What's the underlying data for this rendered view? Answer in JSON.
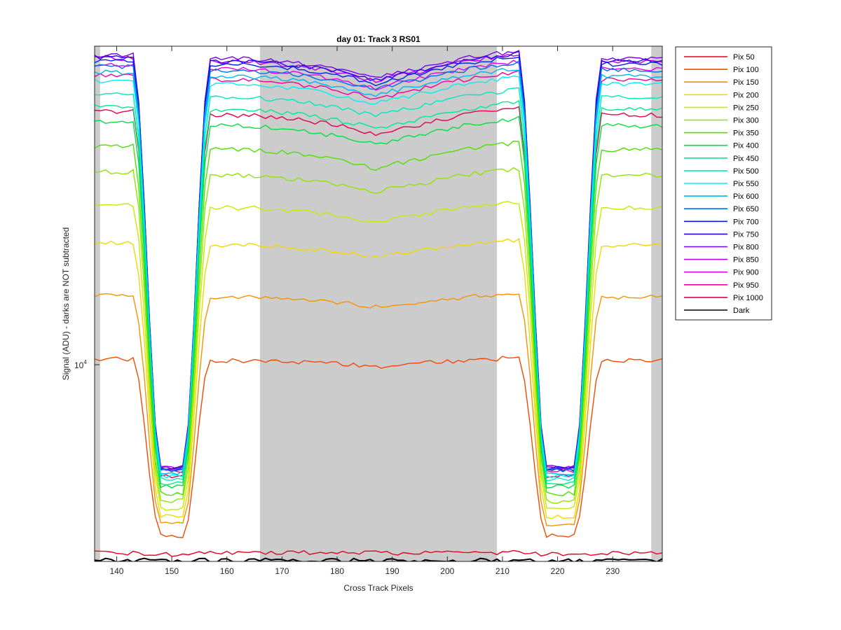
{
  "chart_data": {
    "type": "line",
    "title": "day 01: Track 3  RS01",
    "xlabel": "Cross Track Pixels",
    "ylabel": "Signal (ADU) - darks are NOT subtracted",
    "y_scale": "log",
    "xlim": [
      136,
      239
    ],
    "ylim": [
      4300,
      17000
    ],
    "x_ticks": [
      "140",
      "150",
      "160",
      "170",
      "180",
      "190",
      "200",
      "210",
      "220",
      "230"
    ],
    "y_tick_label": "10",
    "y_tick_exponent": "4",
    "shaded_bands": [
      [
        136,
        137
      ],
      [
        166,
        209
      ],
      [
        237,
        239
      ]
    ],
    "legend_position": "outside-right",
    "grid": false,
    "series": [
      {
        "name": "Pix 50",
        "color": "#e6001e",
        "plateau": 4400,
        "dip": 4380
      },
      {
        "name": "Pix 100",
        "color": "#f04a00",
        "plateau": 7350,
        "dip": 4600
      },
      {
        "name": "Pix 150",
        "color": "#f39400",
        "plateau": 8700,
        "dip": 4750
      },
      {
        "name": "Pix 200",
        "color": "#f0d800",
        "plateau": 10000,
        "dip": 4850
      },
      {
        "name": "Pix 250",
        "color": "#c8ea00",
        "plateau": 11050,
        "dip": 4950
      },
      {
        "name": "Pix 300",
        "color": "#8ee600",
        "plateau": 12050,
        "dip": 5050
      },
      {
        "name": "Pix 350",
        "color": "#4ee000",
        "plateau": 12900,
        "dip": 5150
      },
      {
        "name": "Pix 400",
        "color": "#00e040",
        "plateau": 13750,
        "dip": 5250
      },
      {
        "name": "Pix 450",
        "color": "#00e890",
        "plateau": 14350,
        "dip": 5300
      },
      {
        "name": "Pix 500",
        "color": "#00e8c0",
        "plateau": 14850,
        "dip": 5350
      },
      {
        "name": "Pix 550",
        "color": "#00f0f0",
        "plateau": 15350,
        "dip": 5400
      },
      {
        "name": "Pix 600",
        "color": "#00b4f0",
        "plateau": 15700,
        "dip": 5450
      },
      {
        "name": "Pix 650",
        "color": "#0070e6",
        "plateau": 15950,
        "dip": 5480
      },
      {
        "name": "Pix 700",
        "color": "#0020e6",
        "plateau": 16200,
        "dip": 5500
      },
      {
        "name": "Pix 750",
        "color": "#3000e6",
        "plateau": 16350,
        "dip": 5520
      },
      {
        "name": "Pix 800",
        "color": "#7a00e6",
        "plateau": 16450,
        "dip": 5530
      },
      {
        "name": "Pix 850",
        "color": "#b400ee",
        "plateau": 16300,
        "dip": 5530
      },
      {
        "name": "Pix 900",
        "color": "#e600e6",
        "plateau": 16000,
        "dip": 5510
      },
      {
        "name": "Pix 950",
        "color": "#ee0098",
        "plateau": 15550,
        "dip": 5480
      },
      {
        "name": "Pix 1000",
        "color": "#e6004c",
        "plateau": 14150,
        "dip": 5400
      },
      {
        "name": "Dark",
        "color": "#000000",
        "plateau": 4310,
        "dip": 4310
      }
    ]
  }
}
